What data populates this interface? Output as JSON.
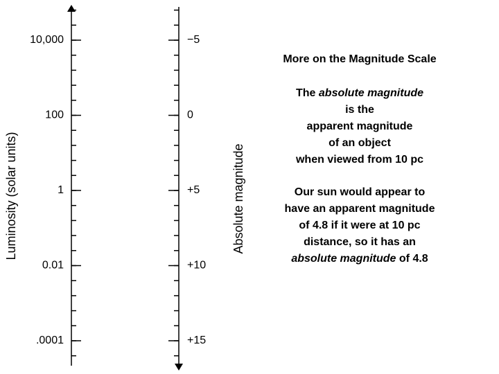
{
  "diagram": {
    "left_axis": {
      "title": "Luminosity (solar units)",
      "labels": [
        "10,000",
        "100",
        "1",
        "0.01",
        ".0001"
      ]
    },
    "right_axis": {
      "title": "Absolute magnitude",
      "labels": [
        "−5",
        "0",
        "+5",
        "+10",
        "+15"
      ]
    }
  },
  "text": {
    "title": "More on the Magnitude Scale",
    "paragraph1": [
      [
        "The",
        "absolute magnitude"
      ],
      "is the",
      "apparent magnitude",
      "of an object",
      "when viewed from 10 pc"
    ],
    "paragraph2": [
      "Our sun would appear to",
      "have an apparent magnitude",
      "of 4.8 if it were at 10 pc",
      "distance, so it has an",
      [
        "absolute magnitude",
        "of 4.8"
      ]
    ]
  }
}
